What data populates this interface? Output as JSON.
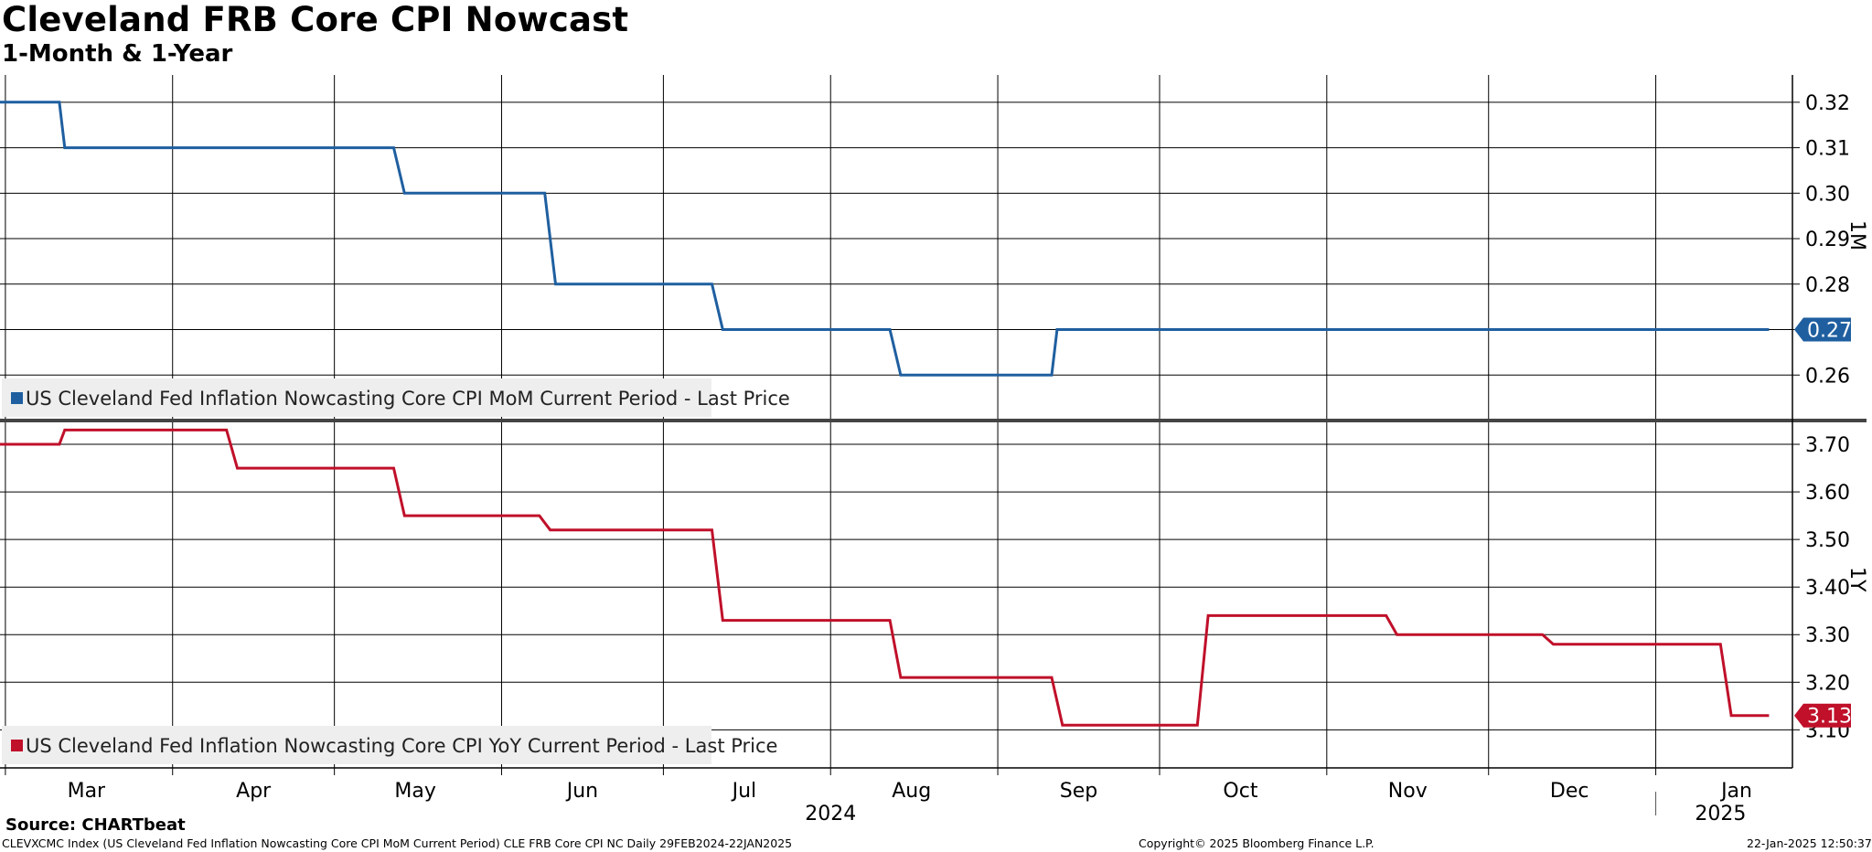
{
  "title": "Cleveland FRB Core CPI Nowcast",
  "subtitle": "1-Month & 1-Year",
  "footer": {
    "source": "Source: CHARTbeat",
    "ticker_line": "CLEVXCMC Index (US Cleveland Fed Inflation Nowcasting Core CPI MoM Current Period) CLE FRB Core CPI NC  Daily 29FEB2024-22JAN2025",
    "copyright": "Copyright© 2025 Bloomberg Finance L.P.",
    "timestamp": "22-Jan-2025 12:50:37"
  },
  "colors": {
    "mom": "#1f5fa0",
    "yoy": "#c0102a",
    "grid": "#000000",
    "legend_bg": "#eeeeee"
  },
  "chart_data": [
    {
      "type": "line",
      "panel": "1M",
      "axis_label": "1M",
      "ylim": [
        0.25,
        0.326
      ],
      "yticks": [
        0.26,
        0.27,
        0.28,
        0.29,
        0.3,
        0.31,
        0.32
      ],
      "ytick_labels": [
        "0.26",
        "0.27",
        "0.28",
        "0.29",
        "0.30",
        "0.31",
        "0.32"
      ],
      "last_value_label": "0.27",
      "series": [
        {
          "name": "US Cleveland Fed Inflation Nowcasting Core CPI MoM Current Period - Last Price",
          "color": "#1f5fa0",
          "points": [
            [
              "2024-02-29",
              0.32
            ],
            [
              "2024-03-11",
              0.32
            ],
            [
              "2024-03-12",
              0.31
            ],
            [
              "2024-05-12",
              0.31
            ],
            [
              "2024-05-14",
              0.3
            ],
            [
              "2024-06-09",
              0.3
            ],
            [
              "2024-06-11",
              0.28
            ],
            [
              "2024-07-10",
              0.28
            ],
            [
              "2024-07-12",
              0.27
            ],
            [
              "2024-08-12",
              0.27
            ],
            [
              "2024-08-14",
              0.26
            ],
            [
              "2024-09-11",
              0.26
            ],
            [
              "2024-09-12",
              0.27
            ],
            [
              "2025-01-22",
              0.27
            ]
          ]
        }
      ]
    },
    {
      "type": "line",
      "panel": "1Y",
      "axis_label": "1Y",
      "ylim": [
        3.02,
        3.75
      ],
      "yticks": [
        3.1,
        3.2,
        3.3,
        3.4,
        3.5,
        3.6,
        3.7
      ],
      "ytick_labels": [
        "3.10",
        "3.20",
        "3.30",
        "3.40",
        "3.50",
        "3.60",
        "3.70"
      ],
      "last_value_label": "3.13",
      "series": [
        {
          "name": "US Cleveland Fed Inflation Nowcasting Core CPI YoY Current Period - Last Price",
          "color": "#c0102a",
          "points": [
            [
              "2024-02-29",
              3.7
            ],
            [
              "2024-03-11",
              3.7
            ],
            [
              "2024-03-12",
              3.73
            ],
            [
              "2024-04-11",
              3.73
            ],
            [
              "2024-04-13",
              3.65
            ],
            [
              "2024-05-12",
              3.65
            ],
            [
              "2024-05-14",
              3.55
            ],
            [
              "2024-06-08",
              3.55
            ],
            [
              "2024-06-10",
              3.52
            ],
            [
              "2024-07-10",
              3.52
            ],
            [
              "2024-07-12",
              3.33
            ],
            [
              "2024-08-12",
              3.33
            ],
            [
              "2024-08-14",
              3.21
            ],
            [
              "2024-09-11",
              3.21
            ],
            [
              "2024-09-13",
              3.11
            ],
            [
              "2024-10-08",
              3.11
            ],
            [
              "2024-10-10",
              3.34
            ],
            [
              "2024-11-12",
              3.34
            ],
            [
              "2024-11-14",
              3.3
            ],
            [
              "2024-12-11",
              3.3
            ],
            [
              "2024-12-13",
              3.28
            ],
            [
              "2025-01-13",
              3.28
            ],
            [
              "2025-01-15",
              3.13
            ],
            [
              "2025-01-22",
              3.13
            ]
          ]
        }
      ]
    }
  ],
  "x_axis": {
    "month_labels": [
      {
        "label": "Mar",
        "date": "2024-03-16"
      },
      {
        "label": "Apr",
        "date": "2024-04-16"
      },
      {
        "label": "May",
        "date": "2024-05-16"
      },
      {
        "label": "Jun",
        "date": "2024-06-16"
      },
      {
        "label": "Jul",
        "date": "2024-07-16"
      },
      {
        "label": "Aug",
        "date": "2024-08-16"
      },
      {
        "label": "Sep",
        "date": "2024-09-16"
      },
      {
        "label": "Oct",
        "date": "2024-10-16"
      },
      {
        "label": "Nov",
        "date": "2024-11-16"
      },
      {
        "label": "Dec",
        "date": "2024-12-16"
      },
      {
        "label": "Jan",
        "date": "2025-01-16"
      }
    ],
    "gridline_dates": [
      "2024-03-01",
      "2024-04-01",
      "2024-05-01",
      "2024-06-01",
      "2024-07-01",
      "2024-08-01",
      "2024-09-01",
      "2024-10-01",
      "2024-11-01",
      "2024-12-01",
      "2025-01-01"
    ],
    "year_labels": [
      {
        "label": "2024",
        "date": "2024-08-01"
      },
      {
        "label": "2025",
        "date": "2025-01-13"
      }
    ],
    "range": [
      "2024-02-29",
      "2025-01-26"
    ]
  }
}
